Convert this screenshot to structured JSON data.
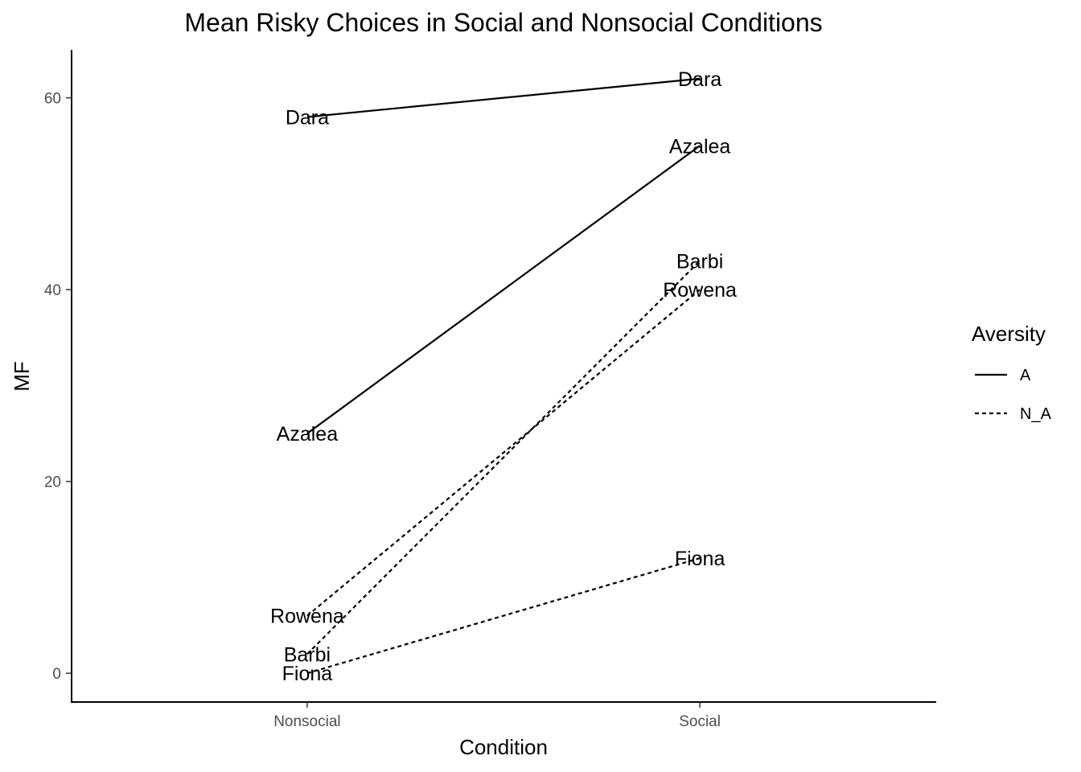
{
  "chart_data": {
    "type": "line",
    "title": "Mean Risky Choices in Social and Nonsocial Conditions",
    "xlabel": "Condition",
    "ylabel": "MF",
    "categories": [
      "Nonsocial",
      "Social"
    ],
    "ylim": [
      -3,
      65
    ],
    "yticks": [
      0,
      20,
      40,
      60
    ],
    "grid": false,
    "legend": {
      "title": "Aversity",
      "position": "right",
      "entries": [
        {
          "label": "A",
          "linetype": "solid"
        },
        {
          "label": "N_A",
          "linetype": "dashed"
        }
      ]
    },
    "series": [
      {
        "name": "Dara",
        "group": "A",
        "values": [
          58,
          62
        ]
      },
      {
        "name": "Azalea",
        "group": "A",
        "values": [
          25,
          55
        ]
      },
      {
        "name": "Barbi",
        "group": "N_A",
        "values": [
          2,
          43
        ]
      },
      {
        "name": "Rowena",
        "group": "N_A",
        "values": [
          6,
          40
        ]
      },
      {
        "name": "Fiona",
        "group": "N_A",
        "values": [
          0,
          12
        ]
      }
    ],
    "colors": {
      "line": "#000000",
      "tick": "#4d4d4d"
    }
  }
}
